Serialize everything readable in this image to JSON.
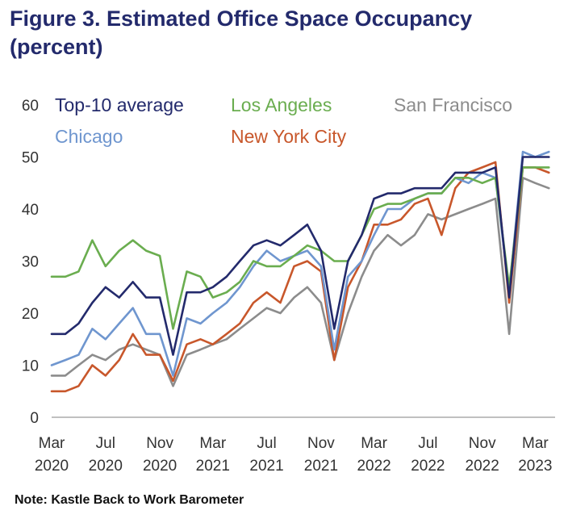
{
  "figure": {
    "title_line1": "Figure 3.  Estimated Office Space Occupancy",
    "title_line2": "(percent)",
    "note": "Note: Kastle Back to Work Barometer"
  },
  "chart_data": {
    "type": "line",
    "title": "Figure 3.  Estimated Office Space Occupancy (percent)",
    "xlabel": "",
    "ylabel": "",
    "ylim": [
      0,
      60
    ],
    "yticks": [
      0,
      10,
      20,
      30,
      40,
      50,
      60
    ],
    "xlim": [
      "2020-03-01",
      "2023-04-15"
    ],
    "xticks": [
      {
        "date": "2020-03-01",
        "line1": "Mar",
        "line2": "2020"
      },
      {
        "date": "2020-07-01",
        "line1": "Jul",
        "line2": "2020"
      },
      {
        "date": "2020-11-01",
        "line1": "Nov",
        "line2": "2020"
      },
      {
        "date": "2021-03-01",
        "line1": "Mar",
        "line2": "2021"
      },
      {
        "date": "2021-07-01",
        "line1": "Jul",
        "line2": "2021"
      },
      {
        "date": "2021-11-01",
        "line1": "Nov",
        "line2": "2021"
      },
      {
        "date": "2022-03-01",
        "line1": "Mar",
        "line2": "2022"
      },
      {
        "date": "2022-07-01",
        "line1": "Jul",
        "line2": "2022"
      },
      {
        "date": "2022-11-01",
        "line1": "Nov",
        "line2": "2022"
      },
      {
        "date": "2023-03-01",
        "line1": "Mar",
        "line2": "2023"
      }
    ],
    "grid": false,
    "legend_position": "top-left",
    "x": [
      "2020-03-01",
      "2020-04-01",
      "2020-05-01",
      "2020-06-01",
      "2020-07-01",
      "2020-08-01",
      "2020-09-01",
      "2020-10-01",
      "2020-11-01",
      "2020-12-01",
      "2021-01-01",
      "2021-02-01",
      "2021-03-01",
      "2021-04-01",
      "2021-05-01",
      "2021-06-01",
      "2021-07-01",
      "2021-08-01",
      "2021-09-01",
      "2021-10-01",
      "2021-11-01",
      "2021-12-01",
      "2022-01-01",
      "2022-02-01",
      "2022-03-01",
      "2022-04-01",
      "2022-05-01",
      "2022-06-01",
      "2022-07-01",
      "2022-08-01",
      "2022-09-01",
      "2022-10-01",
      "2022-11-01",
      "2022-12-01",
      "2023-01-01",
      "2023-02-01",
      "2023-03-01",
      "2023-04-01"
    ],
    "series": [
      {
        "name": "San Francisco",
        "color": "#8c8c8c",
        "values": [
          8,
          8,
          10,
          12,
          11,
          13,
          14,
          13,
          12,
          6,
          12,
          13,
          14,
          15,
          17,
          19,
          21,
          20,
          23,
          25,
          22,
          11,
          20,
          27,
          32,
          35,
          33,
          35,
          39,
          38,
          39,
          40,
          41,
          42,
          16,
          46,
          45,
          44
        ]
      },
      {
        "name": "New York City",
        "color": "#c8572b",
        "values": [
          5,
          5,
          6,
          10,
          8,
          11,
          16,
          12,
          12,
          7,
          14,
          15,
          14,
          16,
          18,
          22,
          24,
          22,
          29,
          30,
          28,
          11,
          25,
          30,
          37,
          37,
          38,
          41,
          42,
          35,
          44,
          47,
          48,
          49,
          22,
          48,
          48,
          47
        ]
      },
      {
        "name": "Chicago",
        "color": "#6f96cf",
        "values": [
          10,
          11,
          12,
          17,
          15,
          18,
          21,
          16,
          16,
          8,
          19,
          18,
          20,
          22,
          25,
          29,
          32,
          30,
          31,
          32,
          29,
          13,
          27,
          30,
          35,
          40,
          40,
          42,
          43,
          43,
          46,
          45,
          47,
          46,
          24,
          51,
          50,
          51
        ]
      },
      {
        "name": "Los Angeles",
        "color": "#6aad4f",
        "values": [
          27,
          27,
          28,
          34,
          29,
          32,
          34,
          32,
          31,
          17,
          28,
          27,
          23,
          24,
          26,
          30,
          29,
          29,
          31,
          33,
          32,
          30,
          30,
          35,
          40,
          41,
          41,
          42,
          43,
          43,
          46,
          46,
          45,
          46,
          25,
          48,
          48,
          48
        ]
      },
      {
        "name": "Top-10 average",
        "color": "#232a6c",
        "values": [
          16,
          16,
          18,
          22,
          25,
          23,
          26,
          23,
          23,
          12,
          24,
          24,
          25,
          27,
          30,
          33,
          34,
          33,
          35,
          37,
          32,
          17,
          30,
          35,
          42,
          43,
          43,
          44,
          44,
          44,
          47,
          47,
          47,
          48,
          23,
          50,
          50,
          50
        ]
      }
    ],
    "legend": [
      {
        "name": "Top-10 average",
        "color": "#232a6c"
      },
      {
        "name": "Los Angeles",
        "color": "#6aad4f"
      },
      {
        "name": "San Francisco",
        "color": "#8c8c8c"
      },
      {
        "name": "Chicago",
        "color": "#6f96cf"
      },
      {
        "name": "New York City",
        "color": "#c8572b"
      }
    ]
  }
}
